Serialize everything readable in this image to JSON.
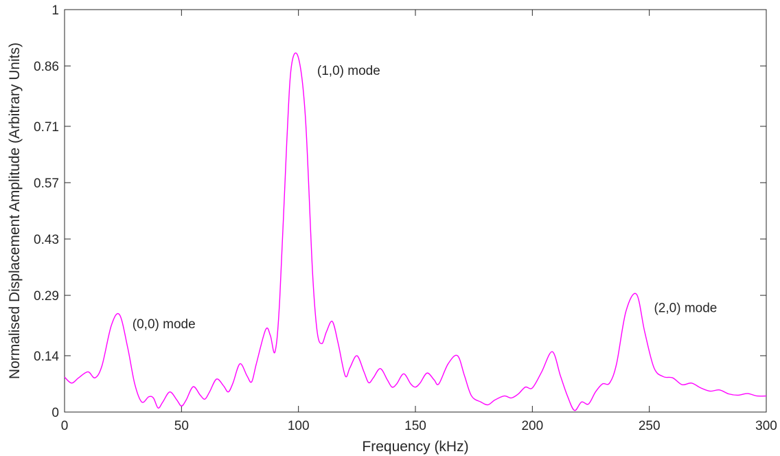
{
  "chart_data": {
    "type": "line",
    "title": "",
    "xlabel": "Frequency (kHz)",
    "ylabel": "Normalised Displacement Amplitude (Arbitrary Units)",
    "xlim": [
      0,
      300
    ],
    "ylim": [
      0,
      1
    ],
    "grid": false,
    "x_ticks": [
      0,
      50,
      100,
      150,
      200,
      250,
      300
    ],
    "x_tick_labels": [
      "0",
      "50",
      "100",
      "150",
      "200",
      "250",
      "300"
    ],
    "y_ticks": [
      0,
      0.14,
      0.29,
      0.43,
      0.57,
      0.71,
      0.86,
      1
    ],
    "y_tick_labels": [
      "0",
      "0.14",
      "0.29",
      "0.43",
      "0.57",
      "0.71",
      "0.86",
      "1"
    ],
    "line_color": "#ff00ff",
    "series": [
      {
        "x": [
          0,
          3,
          6,
          10,
          13,
          16,
          20,
          23.5,
          27,
          30,
          33,
          36,
          38,
          40,
          42,
          45,
          48,
          50,
          52,
          55,
          58,
          60,
          62,
          65,
          68,
          70,
          72,
          75,
          78,
          80,
          82,
          86,
          88,
          90,
          92,
          95,
          97,
          100,
          103,
          106,
          108,
          110,
          112,
          114.5,
          117,
          120,
          122,
          125,
          128,
          130,
          132,
          135,
          138,
          140,
          142,
          145,
          148,
          150,
          152,
          155,
          158,
          160,
          164,
          168,
          171,
          174,
          178,
          181,
          184,
          188,
          191,
          194,
          197,
          200,
          204,
          208.5,
          212,
          215,
          218,
          221,
          224,
          227,
          230,
          233,
          236,
          240,
          244.5,
          248,
          252,
          256,
          260,
          264,
          268,
          272,
          276,
          280,
          284,
          288,
          292,
          296,
          300
        ],
        "y": [
          0.087,
          0.072,
          0.085,
          0.1,
          0.085,
          0.115,
          0.215,
          0.242,
          0.16,
          0.07,
          0.025,
          0.038,
          0.035,
          0.01,
          0.025,
          0.05,
          0.03,
          0.015,
          0.03,
          0.063,
          0.042,
          0.032,
          0.05,
          0.082,
          0.065,
          0.05,
          0.072,
          0.12,
          0.09,
          0.075,
          0.12,
          0.205,
          0.19,
          0.15,
          0.28,
          0.67,
          0.86,
          0.88,
          0.73,
          0.35,
          0.2,
          0.17,
          0.2,
          0.225,
          0.17,
          0.09,
          0.11,
          0.14,
          0.1,
          0.073,
          0.085,
          0.108,
          0.08,
          0.062,
          0.07,
          0.095,
          0.07,
          0.062,
          0.072,
          0.097,
          0.08,
          0.07,
          0.12,
          0.14,
          0.09,
          0.04,
          0.025,
          0.018,
          0.03,
          0.04,
          0.035,
          0.045,
          0.062,
          0.06,
          0.1,
          0.15,
          0.09,
          0.04,
          0.004,
          0.025,
          0.02,
          0.05,
          0.07,
          0.072,
          0.12,
          0.25,
          0.293,
          0.2,
          0.11,
          0.088,
          0.085,
          0.068,
          0.072,
          0.06,
          0.052,
          0.055,
          0.045,
          0.042,
          0.046,
          0.04,
          0.04
        ]
      }
    ],
    "annotations": [
      {
        "text": "(0,0) mode",
        "x": 29,
        "y": 0.22
      },
      {
        "text": "(1,0) mode",
        "x": 108,
        "y": 0.85
      },
      {
        "text": "(2,0) mode",
        "x": 252,
        "y": 0.26
      }
    ]
  }
}
